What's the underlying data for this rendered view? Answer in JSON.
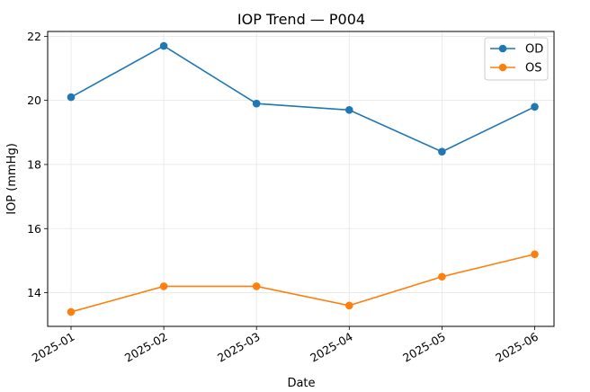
{
  "chart_data": {
    "type": "line",
    "title": "IOP Trend — P004",
    "xlabel": "Date",
    "ylabel": "IOP (mmHg)",
    "x": [
      "2025-01",
      "2025-02",
      "2025-03",
      "2025-04",
      "2025-05",
      "2025-06"
    ],
    "ylim": [
      12.95,
      22.15
    ],
    "yticks": [
      14,
      16,
      18,
      20,
      22
    ],
    "grid": true,
    "legend_position": "top-right",
    "series": [
      {
        "name": "OD",
        "color": "#1f77b4",
        "values": [
          20.1,
          21.7,
          19.9,
          19.7,
          18.4,
          19.8
        ]
      },
      {
        "name": "OS",
        "color": "#ff7f0e",
        "values": [
          13.4,
          14.2,
          14.2,
          13.6,
          14.5,
          15.2
        ]
      }
    ]
  }
}
